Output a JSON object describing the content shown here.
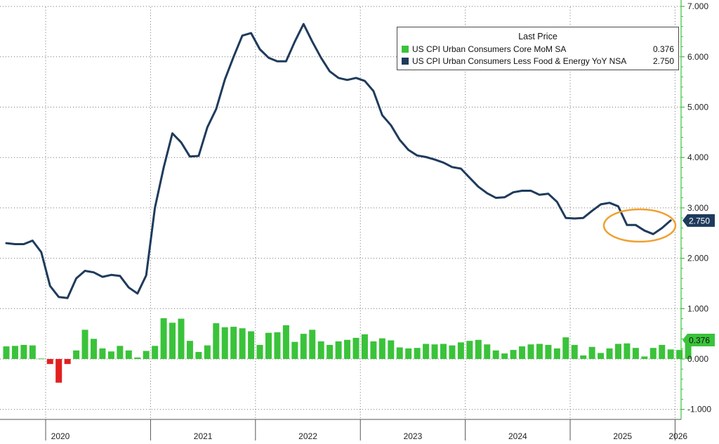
{
  "chart_data": {
    "type": "line",
    "legend": {
      "title": "Last Price",
      "placement": "top-right",
      "entries": [
        {
          "name": "US CPI Urban Consumers Core MoM SA",
          "value": "0.376",
          "color": "#3ac33a"
        },
        {
          "name": "US CPI Urban Consumers Less Food & Energy YoY NSA",
          "value": "2.750",
          "color": "#1f3b5c"
        }
      ]
    },
    "x_labels": [
      "2020",
      "2021",
      "2022",
      "2023",
      "2024",
      "2025",
      "2026"
    ],
    "y_ticks": [
      "7.000",
      "6.000",
      "5.000",
      "4.000",
      "3.000",
      "2.000",
      "1.000",
      "0.000",
      "-1.000"
    ],
    "ylim": [
      -1.2,
      7.1
    ],
    "xlim": [
      "2019-08",
      "2026-03"
    ],
    "grid": true,
    "series": [
      {
        "name": "US CPI Urban Consumers Less Food & Energy YoY NSA",
        "type": "line",
        "color": "#1f3b5c",
        "last_label": "2.750",
        "points": [
          [
            "2019-08",
            2.3
          ],
          [
            "2019-09",
            2.28
          ],
          [
            "2019-10",
            2.28
          ],
          [
            "2019-11",
            2.35
          ],
          [
            "2019-12",
            2.12
          ],
          [
            "2020-01",
            1.45
          ],
          [
            "2020-02",
            1.23
          ],
          [
            "2020-03",
            1.21
          ],
          [
            "2020-04",
            1.6
          ],
          [
            "2020-05",
            1.75
          ],
          [
            "2020-06",
            1.72
          ],
          [
            "2020-07",
            1.63
          ],
          [
            "2020-08",
            1.67
          ],
          [
            "2020-09",
            1.65
          ],
          [
            "2020-10",
            1.42
          ],
          [
            "2020-11",
            1.3
          ],
          [
            "2020-12",
            1.66
          ],
          [
            "2021-01",
            3.0
          ],
          [
            "2021-02",
            3.8
          ],
          [
            "2021-03",
            4.48
          ],
          [
            "2021-04",
            4.3
          ],
          [
            "2021-05",
            4.02
          ],
          [
            "2021-06",
            4.03
          ],
          [
            "2021-07",
            4.6
          ],
          [
            "2021-08",
            4.96
          ],
          [
            "2021-09",
            5.55
          ],
          [
            "2021-10",
            6.0
          ],
          [
            "2021-11",
            6.42
          ],
          [
            "2021-12",
            6.47
          ],
          [
            "2022-01",
            6.15
          ],
          [
            "2022-02",
            5.98
          ],
          [
            "2022-03",
            5.91
          ],
          [
            "2022-04",
            5.91
          ],
          [
            "2022-05",
            6.3
          ],
          [
            "2022-06",
            6.65
          ],
          [
            "2022-07",
            6.3
          ],
          [
            "2022-08",
            5.98
          ],
          [
            "2022-09",
            5.71
          ],
          [
            "2022-10",
            5.58
          ],
          [
            "2022-11",
            5.54
          ],
          [
            "2022-12",
            5.58
          ],
          [
            "2023-01",
            5.52
          ],
          [
            "2023-02",
            5.32
          ],
          [
            "2023-03",
            4.84
          ],
          [
            "2023-04",
            4.64
          ],
          [
            "2023-05",
            4.35
          ],
          [
            "2023-06",
            4.15
          ],
          [
            "2023-07",
            4.04
          ],
          [
            "2023-08",
            4.01
          ],
          [
            "2023-09",
            3.96
          ],
          [
            "2023-10",
            3.9
          ],
          [
            "2023-11",
            3.81
          ],
          [
            "2023-12",
            3.78
          ],
          [
            "2024-01",
            3.6
          ],
          [
            "2024-02",
            3.42
          ],
          [
            "2024-03",
            3.29
          ],
          [
            "2024-04",
            3.2
          ],
          [
            "2024-05",
            3.21
          ],
          [
            "2024-06",
            3.31
          ],
          [
            "2024-07",
            3.34
          ],
          [
            "2024-08",
            3.34
          ],
          [
            "2024-09",
            3.26
          ],
          [
            "2024-10",
            3.28
          ],
          [
            "2024-11",
            3.12
          ],
          [
            "2024-12",
            2.8
          ],
          [
            "2025-01",
            2.79
          ],
          [
            "2025-02",
            2.8
          ],
          [
            "2025-03",
            2.94
          ],
          [
            "2025-04",
            3.07
          ],
          [
            "2025-05",
            3.1
          ],
          [
            "2025-06",
            3.03
          ],
          [
            "2025-07",
            2.66
          ],
          [
            "2025-08",
            2.66
          ],
          [
            "2025-09",
            2.55
          ],
          [
            "2025-10",
            2.48
          ],
          [
            "2025-11",
            2.6
          ],
          [
            "2025-12",
            2.75
          ]
        ]
      },
      {
        "name": "US CPI Urban Consumers Core MoM SA",
        "type": "bar",
        "color": "#3ac33a",
        "negative_color": "#e32020",
        "last_label": "0.376",
        "points": [
          [
            "2019-08",
            0.25
          ],
          [
            "2019-09",
            0.26
          ],
          [
            "2019-10",
            0.28
          ],
          [
            "2019-11",
            0.27
          ],
          [
            "2019-12",
            0.01
          ],
          [
            "2020-01",
            -0.1
          ],
          [
            "2020-02",
            -0.47
          ],
          [
            "2020-03",
            -0.1
          ],
          [
            "2020-04",
            0.17
          ],
          [
            "2020-05",
            0.58
          ],
          [
            "2020-06",
            0.4
          ],
          [
            "2020-07",
            0.21
          ],
          [
            "2020-08",
            0.15
          ],
          [
            "2020-09",
            0.26
          ],
          [
            "2020-10",
            0.17
          ],
          [
            "2020-11",
            0.03
          ],
          [
            "2020-12",
            0.16
          ],
          [
            "2021-01",
            0.26
          ],
          [
            "2021-02",
            0.81
          ],
          [
            "2021-03",
            0.72
          ],
          [
            "2021-04",
            0.8
          ],
          [
            "2021-05",
            0.36
          ],
          [
            "2021-06",
            0.14
          ],
          [
            "2021-07",
            0.27
          ],
          [
            "2021-08",
            0.71
          ],
          [
            "2021-09",
            0.63
          ],
          [
            "2021-10",
            0.64
          ],
          [
            "2021-11",
            0.61
          ],
          [
            "2021-12",
            0.55
          ],
          [
            "2022-01",
            0.28
          ],
          [
            "2022-02",
            0.52
          ],
          [
            "2022-03",
            0.53
          ],
          [
            "2022-04",
            0.67
          ],
          [
            "2022-05",
            0.34
          ],
          [
            "2022-06",
            0.5
          ],
          [
            "2022-07",
            0.58
          ],
          [
            "2022-08",
            0.35
          ],
          [
            "2022-09",
            0.28
          ],
          [
            "2022-10",
            0.35
          ],
          [
            "2022-11",
            0.38
          ],
          [
            "2022-12",
            0.42
          ],
          [
            "2023-01",
            0.49
          ],
          [
            "2023-02",
            0.35
          ],
          [
            "2023-03",
            0.41
          ],
          [
            "2023-04",
            0.37
          ],
          [
            "2023-05",
            0.23
          ],
          [
            "2023-06",
            0.21
          ],
          [
            "2023-07",
            0.22
          ],
          [
            "2023-08",
            0.3
          ],
          [
            "2023-09",
            0.29
          ],
          [
            "2023-10",
            0.3
          ],
          [
            "2023-11",
            0.27
          ],
          [
            "2023-12",
            0.33
          ],
          [
            "2024-01",
            0.36
          ],
          [
            "2024-02",
            0.38
          ],
          [
            "2024-03",
            0.29
          ],
          [
            "2024-04",
            0.17
          ],
          [
            "2024-05",
            0.11
          ],
          [
            "2024-06",
            0.18
          ],
          [
            "2024-07",
            0.25
          ],
          [
            "2024-08",
            0.29
          ],
          [
            "2024-09",
            0.3
          ],
          [
            "2024-10",
            0.28
          ],
          [
            "2024-11",
            0.21
          ],
          [
            "2024-12",
            0.43
          ],
          [
            "2025-01",
            0.28
          ],
          [
            "2025-02",
            0.07
          ],
          [
            "2025-03",
            0.24
          ],
          [
            "2025-04",
            0.12
          ],
          [
            "2025-05",
            0.21
          ],
          [
            "2025-06",
            0.3
          ],
          [
            "2025-07",
            0.31
          ],
          [
            "2025-08",
            0.22
          ],
          [
            "2025-09",
            0.05
          ],
          [
            "2025-10",
            0.22
          ],
          [
            "2025-11",
            0.28
          ],
          [
            "2025-12",
            0.19
          ],
          [
            "2026-01",
            0.18
          ],
          [
            "2026-02",
            0.376
          ]
        ]
      }
    ],
    "annotations": [
      {
        "type": "ellipse",
        "color": "#f0a030",
        "note": "circled recent YoY series"
      }
    ]
  }
}
